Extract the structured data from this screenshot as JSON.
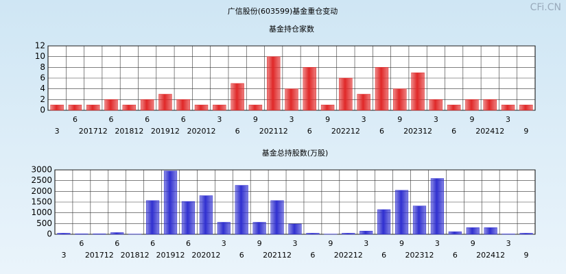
{
  "title": "广信股份(603599)基金重仓变动",
  "watermark": "CFi.CN",
  "chart_data": [
    {
      "type": "bar",
      "title": "基金持仓家数",
      "color": "#e02828",
      "categories": [
        "3",
        "6",
        "201712",
        "6",
        "201812",
        "6",
        "201912",
        "6",
        "202012",
        "3",
        "6",
        "9",
        "202112",
        "3",
        "6",
        "9",
        "202212",
        "3",
        "6",
        "9",
        "202312",
        "3",
        "6",
        "9",
        "202412",
        "3",
        "9"
      ],
      "values": [
        1,
        1,
        1,
        2,
        1,
        2,
        3,
        2,
        1,
        1,
        5,
        1,
        10,
        4,
        8,
        1,
        6,
        3,
        8,
        4,
        7,
        2,
        1,
        2,
        2,
        1,
        1
      ],
      "ylim": [
        0,
        12
      ],
      "yticks": [
        0,
        2,
        4,
        6,
        8,
        10,
        12
      ],
      "grid": true
    },
    {
      "type": "bar",
      "title": "基金总持股数(万股)",
      "color": "#3030d0",
      "categories": [
        "3",
        "6",
        "201712",
        "6",
        "201812",
        "6",
        "201912",
        "6",
        "202012",
        "3",
        "6",
        "9",
        "202112",
        "3",
        "6",
        "9",
        "202212",
        "3",
        "6",
        "9",
        "202312",
        "3",
        "6",
        "9",
        "202412",
        "3",
        "9"
      ],
      "values": [
        50,
        20,
        20,
        80,
        10,
        1570,
        2950,
        1530,
        1800,
        560,
        2280,
        560,
        1570,
        480,
        50,
        10,
        50,
        150,
        1150,
        2050,
        1320,
        2600,
        120,
        310,
        310,
        15,
        50
      ],
      "ylim": [
        0,
        3000
      ],
      "yticks": [
        0,
        500,
        1000,
        1500,
        2000,
        2500,
        3000
      ],
      "grid": true
    }
  ]
}
